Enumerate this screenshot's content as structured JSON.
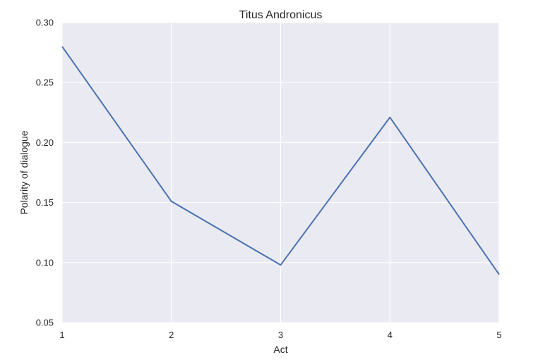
{
  "chart_data": {
    "type": "line",
    "title": "Titus Andronicus",
    "xlabel": "Act",
    "ylabel": "Polarity of dialogue",
    "x": [
      1,
      2,
      3,
      4,
      5
    ],
    "series": [
      {
        "values": [
          0.28,
          0.151,
          0.098,
          0.221,
          0.09
        ],
        "color": "#4c72b0"
      }
    ],
    "xlim": [
      1,
      5
    ],
    "ylim": [
      0.05,
      0.3
    ],
    "xticks": [
      1,
      2,
      3,
      4,
      5
    ],
    "yticks": [
      0.05,
      0.1,
      0.15,
      0.2,
      0.25,
      0.3
    ],
    "ytick_labels": [
      "0.05",
      "0.10",
      "0.15",
      "0.20",
      "0.25",
      "0.30"
    ],
    "xtick_labels": [
      "1",
      "2",
      "3",
      "4",
      "5"
    ],
    "grid": true,
    "background_color": "#eaeaf2",
    "grid_color": "#ffffff"
  }
}
